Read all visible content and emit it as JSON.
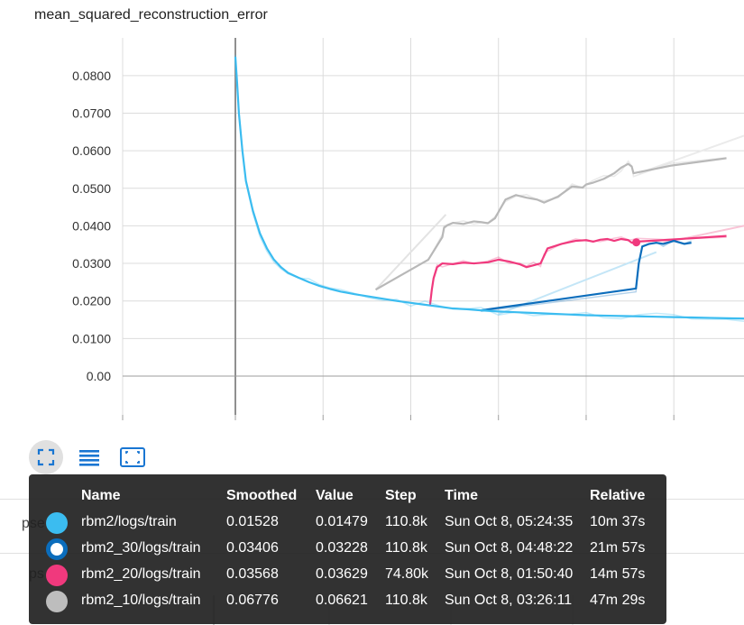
{
  "card": {
    "title": "mean_squared_reconstruction_error"
  },
  "toolbar": {
    "buttons": [
      {
        "name": "fit-domain-button",
        "icon": "fullscreen-icon",
        "active": true
      },
      {
        "name": "toggle-log-button",
        "icon": "menu-lines-icon",
        "active": false
      },
      {
        "name": "fit-data-button",
        "icon": "fit-screen-icon",
        "active": false
      }
    ]
  },
  "background_labels": [
    "pse",
    "ps"
  ],
  "tooltip": {
    "headers": {
      "name": "Name",
      "smoothed": "Smoothed",
      "value": "Value",
      "step": "Step",
      "time": "Time",
      "relative": "Relative"
    },
    "rows": [
      {
        "color": "#3bbcf0",
        "hollow": false,
        "name": "rbm2/logs/train",
        "smoothed": "0.01528",
        "value": "0.01479",
        "step": "110.8k",
        "time": "Sun Oct 8, 05:24:35",
        "relative": "10m 37s"
      },
      {
        "color": "#0b6dbc",
        "hollow": true,
        "name": "rbm2_30/logs/train",
        "smoothed": "0.03406",
        "value": "0.03228",
        "step": "110.8k",
        "time": "Sun Oct 8, 04:48:22",
        "relative": "21m 57s"
      },
      {
        "color": "#f0397d",
        "hollow": false,
        "name": "rbm2_20/logs/train",
        "smoothed": "0.03568",
        "value": "0.03629",
        "step": "74.80k",
        "time": "Sun Oct 8, 01:50:40",
        "relative": "14m 57s"
      },
      {
        "color": "#bdbdbd",
        "hollow": false,
        "name": "rbm2_10/logs/train",
        "smoothed": "0.06776",
        "value": "0.06621",
        "step": "110.8k",
        "time": "Sun Oct 8, 03:26:11",
        "relative": "47m 29s"
      }
    ]
  },
  "chart_data": {
    "type": "line",
    "title": "mean_squared_reconstruction_error",
    "xlabel": "",
    "ylabel": "",
    "ylim": [
      0,
      0.085
    ],
    "xlim": [
      -100000,
      45000
    ],
    "y_ticks": [
      "0.00",
      "0.0100",
      "0.0200",
      "0.0300",
      "0.0400",
      "0.0500",
      "0.0600",
      "0.0700",
      "0.0800"
    ],
    "y_tick_values": [
      0,
      0.01,
      0.02,
      0.03,
      0.04,
      0.05,
      0.06,
      0.07,
      0.08
    ],
    "x_gridlines": [
      -100000,
      -75000,
      -50000,
      -25000,
      0,
      25000
    ],
    "grid": true,
    "series": [
      {
        "name": "rbm2_10/logs/train",
        "color": "#b8b8b8",
        "x": [
          -60000,
          -45000,
          -41000,
          -40500,
          -39500,
          -38000,
          -35000,
          -32000,
          -30000,
          -28000,
          -26000,
          -23000,
          -20000,
          -17000,
          -14000,
          -12000,
          -8000,
          -4000,
          -1000,
          0,
          2000,
          5000,
          8000,
          10000,
          12000,
          13000,
          13500,
          24000,
          40000
        ],
        "y": [
          0.023,
          0.031,
          0.037,
          0.0395,
          0.0402,
          0.0408,
          0.0405,
          0.0412,
          0.041,
          0.0407,
          0.042,
          0.047,
          0.0482,
          0.0475,
          0.047,
          0.0462,
          0.0478,
          0.0505,
          0.0502,
          0.051,
          0.0515,
          0.0525,
          0.054,
          0.0555,
          0.0565,
          0.0558,
          0.054,
          0.056,
          0.058
        ]
      },
      {
        "name": "rbm2_20/logs/train",
        "color": "#f0397d",
        "x": [
          -44500,
          -44000,
          -43500,
          -42500,
          -41000,
          -38000,
          -35000,
          -32000,
          -28000,
          -25000,
          -22000,
          -19000,
          -17000,
          -15000,
          -13000,
          -12000,
          -11000,
          -7000,
          -3000,
          0,
          2000,
          4000,
          6000,
          8000,
          10000,
          12000,
          13000,
          14500,
          22000,
          40000
        ],
        "y": [
          0.019,
          0.023,
          0.026,
          0.029,
          0.03,
          0.0298,
          0.0302,
          0.03,
          0.0303,
          0.031,
          0.0305,
          0.0298,
          0.029,
          0.0295,
          0.03,
          0.032,
          0.034,
          0.0352,
          0.036,
          0.0362,
          0.0358,
          0.0363,
          0.0365,
          0.036,
          0.0365,
          0.0362,
          0.0355,
          0.0358,
          0.0362,
          0.0373
        ]
      },
      {
        "name": "rbm2_30/logs/train",
        "color": "#0b6dbc",
        "x": [
          -30000,
          14200,
          15000,
          16000,
          18000,
          20000,
          22000,
          25000,
          28000,
          30000
        ],
        "y": [
          0.0175,
          0.0233,
          0.03,
          0.0345,
          0.0352,
          0.0355,
          0.0352,
          0.036,
          0.0352,
          0.0355
        ]
      },
      {
        "name": "rbm2/logs/train",
        "color": "#3bbcf0",
        "x": [
          -100000,
          -99500,
          -99000,
          -98000,
          -97000,
          -95000,
          -93000,
          -91000,
          -89000,
          -87000,
          -85000,
          -82000,
          -79000,
          -76000,
          -73000,
          -70000,
          -66000,
          -62000,
          -58000,
          -54000,
          -50000,
          -46000,
          -42000,
          -38000,
          -34000,
          -30000,
          -25000,
          -20000,
          -15000,
          -10000,
          -5000,
          0,
          5000,
          10000,
          15000,
          20000,
          25000,
          30000,
          35000,
          40000,
          45000
        ],
        "y": [
          0.085,
          0.078,
          0.07,
          0.06,
          0.052,
          0.044,
          0.038,
          0.034,
          0.031,
          0.029,
          0.0275,
          0.0262,
          0.025,
          0.024,
          0.0232,
          0.0225,
          0.0218,
          0.0212,
          0.0206,
          0.02,
          0.0195,
          0.019,
          0.0185,
          0.018,
          0.0178,
          0.0175,
          0.0172,
          0.017,
          0.0168,
          0.0166,
          0.0164,
          0.0162,
          0.0161,
          0.016,
          0.0159,
          0.0158,
          0.0157,
          0.0156,
          0.0155,
          0.0154,
          0.0153
        ]
      }
    ],
    "ghost_lines": [
      {
        "color": "#e3e3e3",
        "x": [
          -60000,
          -40000
        ],
        "y": [
          0.023,
          0.043
        ]
      },
      {
        "color": "#ebebeb",
        "x": [
          15000,
          45000
        ],
        "y": [
          0.054,
          0.064
        ]
      },
      {
        "color": "#f9c4d6",
        "x": [
          22000,
          45000
        ],
        "y": [
          0.0355,
          0.04
        ]
      },
      {
        "color": "#c4e6f7",
        "x": [
          -25000,
          20000
        ],
        "y": [
          0.0165,
          0.033
        ]
      }
    ],
    "highlight_point": {
      "series": "rbm2_20/logs/train",
      "x": 14300,
      "y": 0.0356,
      "color": "#f0397d"
    }
  }
}
